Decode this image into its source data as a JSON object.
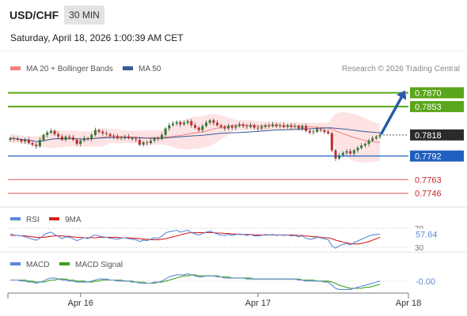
{
  "header": {
    "symbol": "USD/CHF",
    "timeframe": "30 MIN",
    "datetime": "Saturday, April 18, 2026 1:00:39 AM CET"
  },
  "colors": {
    "bull": "#2e7d32",
    "bear": "#c62828",
    "ma20": "#f08080",
    "ma50": "#3a5a99",
    "band_fill": "#fde3e3",
    "resistance": "#5aa51a",
    "support": "#1f5fbf",
    "low_line": "#e05555",
    "last_price": "#2b2b2b",
    "arrow": "#2a5aa8",
    "rsi": "#5b87d6",
    "rsi_ma": "#d62020",
    "macd": "#5b87d6",
    "macd_signal": "#3da01a",
    "grid": "#e8e8e8"
  },
  "chart_data": [
    {
      "type": "candlestick",
      "panel": "price",
      "legend": [
        {
          "label": "MA 20 + Bollinger Bands",
          "color": "#f08080"
        },
        {
          "label": "MA 50",
          "color": "#3a5a99"
        }
      ],
      "legend_placement": "top-left",
      "credit": "Research © 2026 Trading Central",
      "ylim": [
        0.7735,
        0.7887
      ],
      "x_ticks": [
        {
          "label": "Apr 16",
          "index": 19
        },
        {
          "label": "Apr 17",
          "index": 67
        },
        {
          "label": "Apr 18",
          "index": 115
        }
      ],
      "levels": [
        {
          "value": 0.787,
          "label": "0.7870",
          "kind": "resistance"
        },
        {
          "value": 0.7853,
          "label": "0.7853",
          "kind": "resistance"
        },
        {
          "value": 0.7792,
          "label": "0.7792",
          "kind": "support"
        },
        {
          "value": 0.7763,
          "label": "0.7763",
          "kind": "low"
        },
        {
          "value": 0.7746,
          "label": "0.7746",
          "kind": "low"
        }
      ],
      "last_price": {
        "value": 0.7818,
        "label": "0.7818"
      },
      "target_arrow": {
        "from": 0.7818,
        "to": 0.787
      },
      "closes": [
        0.7814,
        0.7813,
        0.7812,
        0.781,
        0.7812,
        0.7808,
        0.7806,
        0.7804,
        0.7812,
        0.7818,
        0.7821,
        0.7823,
        0.7819,
        0.7816,
        0.7812,
        0.7816,
        0.7815,
        0.7812,
        0.7807,
        0.7811,
        0.7814,
        0.7813,
        0.7818,
        0.7824,
        0.7822,
        0.782,
        0.7819,
        0.7817,
        0.7816,
        0.7814,
        0.7815,
        0.7816,
        0.7814,
        0.7813,
        0.7812,
        0.7806,
        0.7809,
        0.7808,
        0.7811,
        0.7814,
        0.7813,
        0.7818,
        0.7826,
        0.783,
        0.7832,
        0.7834,
        0.7831,
        0.7833,
        0.7835,
        0.783,
        0.7827,
        0.7824,
        0.7829,
        0.7833,
        0.7836,
        0.7833,
        0.783,
        0.7828,
        0.7826,
        0.7829,
        0.7827,
        0.7829,
        0.7831,
        0.7829,
        0.7828,
        0.783,
        0.7827,
        0.7826,
        0.7828,
        0.783,
        0.7829,
        0.7831,
        0.7829,
        0.783,
        0.7828,
        0.783,
        0.7828,
        0.7829,
        0.7826,
        0.7829,
        0.7823,
        0.7821,
        0.7822,
        0.7825,
        0.7824,
        0.7822,
        0.782,
        0.7799,
        0.7789,
        0.7793,
        0.7796,
        0.7798,
        0.7795,
        0.7799,
        0.7802,
        0.7805,
        0.7807,
        0.7811,
        0.7814,
        0.7816,
        0.7818
      ]
    },
    {
      "type": "line",
      "panel": "rsi",
      "legend": [
        {
          "label": "RSI",
          "color": "#5b87d6"
        },
        {
          "label": "9MA",
          "color": "#d62020"
        }
      ],
      "ylim": [
        25,
        75
      ],
      "levels": [
        {
          "value": 70,
          "label": "70"
        },
        {
          "value": 30,
          "label": "30"
        }
      ],
      "value_label": "57.64",
      "series": [
        {
          "name": "RSI",
          "values": [
            58,
            56,
            55,
            54,
            52,
            50,
            47,
            45,
            49,
            55,
            60,
            62,
            57,
            53,
            48,
            52,
            51,
            48,
            44,
            47,
            50,
            48,
            53,
            56,
            54,
            52,
            51,
            49,
            48,
            47,
            49,
            50,
            48,
            47,
            46,
            42,
            45,
            44,
            47,
            50,
            49,
            53,
            60,
            63,
            64,
            66,
            62,
            64,
            66,
            61,
            58,
            56,
            59,
            62,
            64,
            61,
            58,
            56,
            55,
            57,
            55,
            57,
            58,
            57,
            55,
            57,
            54,
            54,
            55,
            57,
            56,
            57,
            55,
            56,
            55,
            56,
            54,
            55,
            52,
            54,
            49,
            47,
            48,
            51,
            50,
            48,
            46,
            33,
            28,
            33,
            36,
            38,
            35,
            40,
            43,
            47,
            50,
            54,
            56,
            57,
            57.64
          ]
        },
        {
          "name": "9MA",
          "values": [
            55,
            55,
            55,
            54,
            54,
            53,
            52,
            51,
            51,
            51,
            52,
            53,
            54,
            54,
            54,
            53,
            53,
            52,
            51,
            51,
            50,
            50,
            50,
            50,
            51,
            51,
            51,
            51,
            51,
            51,
            50,
            50,
            50,
            49,
            49,
            48,
            47,
            47,
            46,
            46,
            46,
            47,
            48,
            50,
            52,
            54,
            56,
            58,
            60,
            61,
            61,
            61,
            61,
            61,
            61,
            61,
            60,
            60,
            59,
            59,
            58,
            58,
            57,
            57,
            57,
            57,
            56,
            56,
            56,
            56,
            56,
            56,
            56,
            56,
            56,
            56,
            56,
            56,
            55,
            55,
            54,
            53,
            52,
            52,
            51,
            50,
            50,
            48,
            45,
            43,
            41,
            39,
            38,
            37,
            37,
            38,
            40,
            42,
            45,
            48,
            51
          ]
        }
      ]
    },
    {
      "type": "line",
      "panel": "macd",
      "legend": [
        {
          "label": "MACD",
          "color": "#5b87d6"
        },
        {
          "label": "MACD Signal",
          "color": "#3da01a"
        }
      ],
      "ylim": [
        -0.001,
        0.0012
      ],
      "value_label": "-0.00",
      "series": [
        {
          "name": "MACD",
          "values": [
            0.0001,
            0.0001,
            0.0001,
            0.0,
            0.0,
            -0.0001,
            -0.0001,
            -0.0002,
            -0.0001,
            0.0,
            0.0002,
            0.0003,
            0.0003,
            0.0002,
            0.0001,
            0.0001,
            0.0,
            0.0,
            -0.0001,
            -0.0001,
            -0.0001,
            -0.0001,
            0.0,
            0.0001,
            0.0002,
            0.0002,
            0.0002,
            0.0001,
            0.0001,
            0.0,
            0.0,
            0.0,
            0.0,
            -0.0001,
            -0.0001,
            -0.0002,
            -0.0002,
            -0.0002,
            -0.0002,
            -0.0001,
            -0.0001,
            0.0,
            0.0002,
            0.0004,
            0.0005,
            0.0006,
            0.0006,
            0.0006,
            0.0007,
            0.0006,
            0.0005,
            0.0004,
            0.0004,
            0.0005,
            0.0005,
            0.0005,
            0.0004,
            0.0004,
            0.0003,
            0.0003,
            0.0003,
            0.0003,
            0.0003,
            0.0003,
            0.0002,
            0.0002,
            0.0002,
            0.0002,
            0.0002,
            0.0002,
            0.0002,
            0.0002,
            0.0002,
            0.0002,
            0.0002,
            0.0002,
            0.0002,
            0.0002,
            0.0001,
            0.0001,
            0.0,
            0.0,
            0.0,
            0.0,
            0.0,
            -0.0001,
            -0.0001,
            -0.0004,
            -0.0007,
            -0.0008,
            -0.0008,
            -0.0008,
            -0.0008,
            -0.0007,
            -0.0006,
            -0.0005,
            -0.0004,
            -0.0003,
            -0.0002,
            -0.0001,
            -0.0
          ]
        },
        {
          "name": "MACD Signal",
          "values": [
            0.0001,
            0.0001,
            0.0001,
            0.0001,
            0.0001,
            0.0,
            0.0,
            -0.0001,
            -0.0001,
            -0.0001,
            0.0,
            0.0001,
            0.0001,
            0.0002,
            0.0002,
            0.0002,
            0.0001,
            0.0001,
            0.0,
            0.0,
            0.0,
            -0.0001,
            -0.0001,
            0.0,
            0.0,
            0.0001,
            0.0001,
            0.0001,
            0.0001,
            0.0001,
            0.0001,
            0.0,
            0.0,
            0.0,
            -0.0001,
            -0.0001,
            -0.0001,
            -0.0002,
            -0.0002,
            -0.0002,
            -0.0001,
            -0.0001,
            0.0,
            0.0001,
            0.0002,
            0.0003,
            0.0004,
            0.0005,
            0.0005,
            0.0006,
            0.0006,
            0.0005,
            0.0005,
            0.0005,
            0.0005,
            0.0005,
            0.0005,
            0.0004,
            0.0004,
            0.0004,
            0.0003,
            0.0003,
            0.0003,
            0.0003,
            0.0003,
            0.0003,
            0.0002,
            0.0002,
            0.0002,
            0.0002,
            0.0002,
            0.0002,
            0.0002,
            0.0002,
            0.0002,
            0.0002,
            0.0002,
            0.0002,
            0.0002,
            0.0001,
            0.0001,
            0.0001,
            0.0001,
            0.0,
            0.0,
            0.0,
            0.0,
            -0.0001,
            -0.0002,
            -0.0004,
            -0.0005,
            -0.0006,
            -0.0007,
            -0.0007,
            -0.0007,
            -0.0007,
            -0.0006,
            -0.0006,
            -0.0005,
            -0.0004,
            -0.0003
          ]
        }
      ]
    }
  ]
}
